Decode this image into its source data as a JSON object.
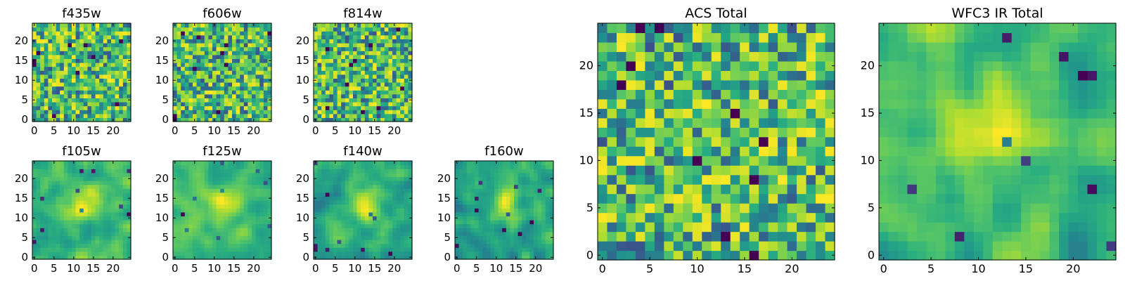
{
  "figure": {
    "colormap": "viridis",
    "colors": {
      "background": "#ffffff",
      "axis": "#000000",
      "tick": "#000000"
    }
  },
  "chart_data": [
    {
      "type": "heatmap",
      "title": "f435w",
      "grid_size": 25,
      "pattern": "noise",
      "seed": 11,
      "xticks": [
        0,
        5,
        10,
        15,
        20
      ],
      "yticks": [
        0,
        5,
        10,
        15,
        20
      ],
      "xlim": [
        0,
        24
      ],
      "ylim": [
        0,
        24
      ],
      "xlabel": "",
      "ylabel": ""
    },
    {
      "type": "heatmap",
      "title": "f606w",
      "grid_size": 25,
      "pattern": "noise",
      "seed": 23,
      "xticks": [
        0,
        5,
        10,
        15,
        20
      ],
      "yticks": [
        0,
        5,
        10,
        15,
        20
      ],
      "xlim": [
        0,
        24
      ],
      "ylim": [
        0,
        24
      ],
      "xlabel": "",
      "ylabel": ""
    },
    {
      "type": "heatmap",
      "title": "f814w",
      "grid_size": 25,
      "pattern": "noise",
      "seed": 37,
      "xticks": [
        0,
        5,
        10,
        15,
        20
      ],
      "yticks": [
        0,
        5,
        10,
        15,
        20
      ],
      "xlim": [
        0,
        24
      ],
      "ylim": [
        0,
        24
      ],
      "xlabel": "",
      "ylabel": ""
    },
    {
      "type": "heatmap",
      "title": "f105w",
      "grid_size": 25,
      "pattern": "smooth",
      "seed": 41,
      "xticks": [
        0,
        5,
        10,
        15,
        20
      ],
      "yticks": [
        0,
        5,
        10,
        15,
        20
      ],
      "xlim": [
        0,
        24
      ],
      "ylim": [
        0,
        24
      ],
      "xlabel": "",
      "ylabel": ""
    },
    {
      "type": "heatmap",
      "title": "f125w",
      "grid_size": 25,
      "pattern": "smooth",
      "seed": 53,
      "xticks": [
        0,
        5,
        10,
        15,
        20
      ],
      "yticks": [
        0,
        5,
        10,
        15,
        20
      ],
      "xlim": [
        0,
        24
      ],
      "ylim": [
        0,
        24
      ],
      "xlabel": "",
      "ylabel": ""
    },
    {
      "type": "heatmap",
      "title": "f140w",
      "grid_size": 25,
      "pattern": "smooth",
      "seed": 67,
      "xticks": [
        0,
        5,
        10,
        15,
        20
      ],
      "yticks": [
        0,
        5,
        10,
        15,
        20
      ],
      "xlim": [
        0,
        24
      ],
      "ylim": [
        0,
        24
      ],
      "xlabel": "",
      "ylabel": ""
    },
    {
      "type": "heatmap",
      "title": "f160w",
      "grid_size": 25,
      "pattern": "smooth",
      "seed": 79,
      "xticks": [
        0,
        5,
        10,
        15,
        20
      ],
      "yticks": [
        0,
        5,
        10,
        15,
        20
      ],
      "xlim": [
        0,
        24
      ],
      "ylim": [
        0,
        24
      ],
      "xlabel": "",
      "ylabel": ""
    },
    {
      "type": "heatmap",
      "title": "ACS Total",
      "grid_size": 25,
      "pattern": "noise",
      "seed": 97,
      "xticks": [
        0,
        5,
        10,
        15,
        20
      ],
      "yticks": [
        0,
        5,
        10,
        15,
        20
      ],
      "xlim": [
        0,
        24
      ],
      "ylim": [
        0,
        24
      ],
      "xlabel": "",
      "ylabel": ""
    },
    {
      "type": "heatmap",
      "title": "WFC3 IR Total",
      "grid_size": 25,
      "pattern": "smooth",
      "seed": 131,
      "xticks": [
        0,
        5,
        10,
        15,
        20
      ],
      "yticks": [
        0,
        5,
        10,
        15,
        20
      ],
      "xlim": [
        0,
        24
      ],
      "ylim": [
        0,
        24
      ],
      "xlabel": "",
      "ylabel": ""
    }
  ]
}
